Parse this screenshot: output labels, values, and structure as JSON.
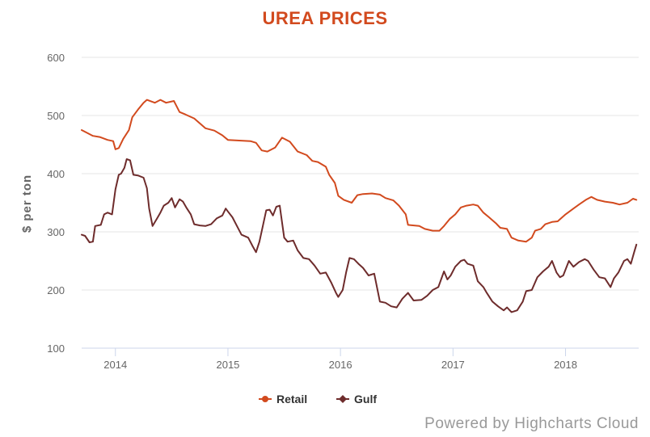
{
  "chart_data": {
    "type": "line",
    "title": "UREA PRICES",
    "ylabel": "$ per ton",
    "xlabel": "",
    "ylim": [
      100,
      600
    ],
    "yticks": [
      100,
      200,
      300,
      400,
      500,
      600
    ],
    "xlim": [
      2013.7,
      2018.65
    ],
    "xticks": [
      2014,
      2015,
      2016,
      2017,
      2018
    ],
    "xtick_labels": [
      "2014",
      "2015",
      "2016",
      "2017",
      "2018"
    ],
    "grid": true,
    "legend": "bottom-center",
    "credits": "Powered by Highcharts Cloud",
    "series": [
      {
        "name": "Retail",
        "color": "#d24a1e",
        "points": [
          [
            2013.7,
            475
          ],
          [
            2013.75,
            470
          ],
          [
            2013.8,
            465
          ],
          [
            2013.86,
            463
          ],
          [
            2013.93,
            458
          ],
          [
            2013.98,
            456
          ],
          [
            2014.0,
            442
          ],
          [
            2014.03,
            444
          ],
          [
            2014.07,
            460
          ],
          [
            2014.12,
            475
          ],
          [
            2014.15,
            497
          ],
          [
            2014.2,
            510
          ],
          [
            2014.25,
            522
          ],
          [
            2014.28,
            527
          ],
          [
            2014.35,
            522
          ],
          [
            2014.4,
            527
          ],
          [
            2014.45,
            522
          ],
          [
            2014.52,
            525
          ],
          [
            2014.57,
            506
          ],
          [
            2014.62,
            502
          ],
          [
            2014.7,
            495
          ],
          [
            2014.8,
            478
          ],
          [
            2014.88,
            474
          ],
          [
            2014.95,
            466
          ],
          [
            2015.0,
            458
          ],
          [
            2015.1,
            457
          ],
          [
            2015.2,
            456
          ],
          [
            2015.25,
            453
          ],
          [
            2015.3,
            440
          ],
          [
            2015.35,
            438
          ],
          [
            2015.42,
            445
          ],
          [
            2015.48,
            462
          ],
          [
            2015.55,
            455
          ],
          [
            2015.62,
            438
          ],
          [
            2015.7,
            432
          ],
          [
            2015.75,
            422
          ],
          [
            2015.8,
            420
          ],
          [
            2015.87,
            412
          ],
          [
            2015.9,
            398
          ],
          [
            2015.95,
            384
          ],
          [
            2015.98,
            362
          ],
          [
            2016.03,
            355
          ],
          [
            2016.1,
            350
          ],
          [
            2016.15,
            363
          ],
          [
            2016.2,
            365
          ],
          [
            2016.28,
            366
          ],
          [
            2016.35,
            364
          ],
          [
            2016.4,
            358
          ],
          [
            2016.47,
            354
          ],
          [
            2016.52,
            345
          ],
          [
            2016.58,
            330
          ],
          [
            2016.6,
            312
          ],
          [
            2016.7,
            310
          ],
          [
            2016.75,
            305
          ],
          [
            2016.82,
            302
          ],
          [
            2016.88,
            302
          ],
          [
            2016.92,
            310
          ],
          [
            2016.97,
            322
          ],
          [
            2017.02,
            330
          ],
          [
            2017.07,
            342
          ],
          [
            2017.12,
            345
          ],
          [
            2017.18,
            347
          ],
          [
            2017.22,
            345
          ],
          [
            2017.27,
            333
          ],
          [
            2017.32,
            325
          ],
          [
            2017.38,
            315
          ],
          [
            2017.42,
            307
          ],
          [
            2017.48,
            305
          ],
          [
            2017.52,
            290
          ],
          [
            2017.58,
            285
          ],
          [
            2017.65,
            283
          ],
          [
            2017.7,
            290
          ],
          [
            2017.73,
            302
          ],
          [
            2017.78,
            305
          ],
          [
            2017.82,
            313
          ],
          [
            2017.88,
            317
          ],
          [
            2017.93,
            318
          ],
          [
            2018.0,
            330
          ],
          [
            2018.07,
            340
          ],
          [
            2018.12,
            347
          ],
          [
            2018.18,
            355
          ],
          [
            2018.23,
            360
          ],
          [
            2018.28,
            355
          ],
          [
            2018.35,
            352
          ],
          [
            2018.42,
            350
          ],
          [
            2018.48,
            347
          ],
          [
            2018.55,
            350
          ],
          [
            2018.6,
            357
          ],
          [
            2018.63,
            355
          ]
        ]
      },
      {
        "name": "Gulf",
        "color": "#6e2c2c",
        "points": [
          [
            2013.7,
            295
          ],
          [
            2013.73,
            293
          ],
          [
            2013.77,
            282
          ],
          [
            2013.8,
            283
          ],
          [
            2013.82,
            310
          ],
          [
            2013.87,
            312
          ],
          [
            2013.9,
            330
          ],
          [
            2013.93,
            333
          ],
          [
            2013.97,
            330
          ],
          [
            2014.0,
            373
          ],
          [
            2014.03,
            398
          ],
          [
            2014.05,
            400
          ],
          [
            2014.08,
            410
          ],
          [
            2014.1,
            425
          ],
          [
            2014.13,
            423
          ],
          [
            2014.16,
            398
          ],
          [
            2014.2,
            397
          ],
          [
            2014.25,
            393
          ],
          [
            2014.28,
            375
          ],
          [
            2014.3,
            340
          ],
          [
            2014.33,
            310
          ],
          [
            2014.37,
            323
          ],
          [
            2014.4,
            333
          ],
          [
            2014.43,
            345
          ],
          [
            2014.47,
            350
          ],
          [
            2014.5,
            358
          ],
          [
            2014.53,
            342
          ],
          [
            2014.57,
            356
          ],
          [
            2014.6,
            352
          ],
          [
            2014.63,
            342
          ],
          [
            2014.67,
            330
          ],
          [
            2014.7,
            313
          ],
          [
            2014.75,
            311
          ],
          [
            2014.8,
            310
          ],
          [
            2014.85,
            313
          ],
          [
            2014.9,
            323
          ],
          [
            2014.95,
            328
          ],
          [
            2014.98,
            340
          ],
          [
            2015.0,
            335
          ],
          [
            2015.04,
            325
          ],
          [
            2015.08,
            310
          ],
          [
            2015.12,
            295
          ],
          [
            2015.18,
            290
          ],
          [
            2015.22,
            275
          ],
          [
            2015.25,
            265
          ],
          [
            2015.28,
            283
          ],
          [
            2015.31,
            310
          ],
          [
            2015.34,
            337
          ],
          [
            2015.37,
            338
          ],
          [
            2015.4,
            328
          ],
          [
            2015.43,
            343
          ],
          [
            2015.46,
            345
          ],
          [
            2015.5,
            290
          ],
          [
            2015.53,
            283
          ],
          [
            2015.58,
            285
          ],
          [
            2015.62,
            268
          ],
          [
            2015.67,
            255
          ],
          [
            2015.72,
            253
          ],
          [
            2015.77,
            242
          ],
          [
            2015.82,
            228
          ],
          [
            2015.87,
            230
          ],
          [
            2015.92,
            212
          ],
          [
            2015.96,
            195
          ],
          [
            2015.98,
            188
          ],
          [
            2016.02,
            200
          ],
          [
            2016.05,
            230
          ],
          [
            2016.08,
            255
          ],
          [
            2016.12,
            253
          ],
          [
            2016.16,
            245
          ],
          [
            2016.2,
            238
          ],
          [
            2016.25,
            225
          ],
          [
            2016.3,
            228
          ],
          [
            2016.35,
            180
          ],
          [
            2016.4,
            178
          ],
          [
            2016.45,
            172
          ],
          [
            2016.5,
            170
          ],
          [
            2016.55,
            185
          ],
          [
            2016.6,
            195
          ],
          [
            2016.65,
            182
          ],
          [
            2016.72,
            183
          ],
          [
            2016.77,
            190
          ],
          [
            2016.82,
            200
          ],
          [
            2016.87,
            205
          ],
          [
            2016.92,
            232
          ],
          [
            2016.95,
            218
          ],
          [
            2016.98,
            225
          ],
          [
            2017.02,
            240
          ],
          [
            2017.07,
            250
          ],
          [
            2017.1,
            252
          ],
          [
            2017.13,
            245
          ],
          [
            2017.18,
            242
          ],
          [
            2017.22,
            215
          ],
          [
            2017.27,
            205
          ],
          [
            2017.3,
            195
          ],
          [
            2017.35,
            180
          ],
          [
            2017.4,
            172
          ],
          [
            2017.45,
            165
          ],
          [
            2017.48,
            170
          ],
          [
            2017.52,
            162
          ],
          [
            2017.57,
            165
          ],
          [
            2017.62,
            180
          ],
          [
            2017.65,
            198
          ],
          [
            2017.7,
            200
          ],
          [
            2017.75,
            222
          ],
          [
            2017.8,
            232
          ],
          [
            2017.85,
            240
          ],
          [
            2017.88,
            250
          ],
          [
            2017.92,
            230
          ],
          [
            2017.95,
            222
          ],
          [
            2017.98,
            225
          ],
          [
            2018.03,
            250
          ],
          [
            2018.07,
            240
          ],
          [
            2018.12,
            248
          ],
          [
            2018.17,
            253
          ],
          [
            2018.2,
            250
          ],
          [
            2018.25,
            235
          ],
          [
            2018.3,
            222
          ],
          [
            2018.35,
            220
          ],
          [
            2018.4,
            205
          ],
          [
            2018.43,
            220
          ],
          [
            2018.47,
            230
          ],
          [
            2018.52,
            250
          ],
          [
            2018.55,
            253
          ],
          [
            2018.58,
            245
          ],
          [
            2018.61,
            265
          ],
          [
            2018.63,
            278
          ]
        ]
      }
    ]
  }
}
